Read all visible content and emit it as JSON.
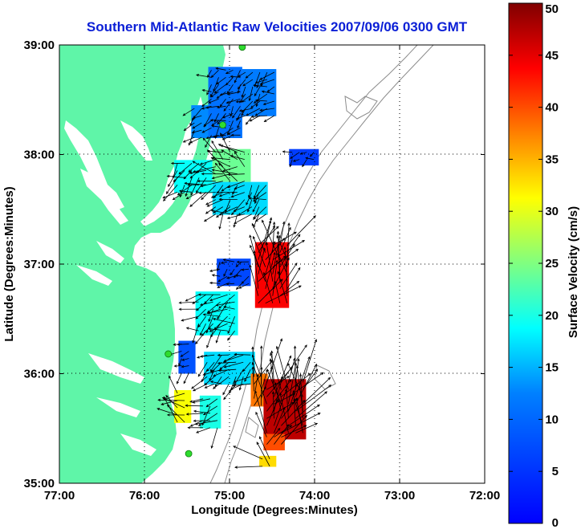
{
  "title": "Southern Mid-Atlantic Raw Velocities 2007/09/06 0300 GMT",
  "x_axis": {
    "label": "Longitude (Degrees:Minutes)",
    "ticks": [
      "77:00",
      "76:00",
      "75:00",
      "74:00",
      "73:00",
      "72:00"
    ]
  },
  "y_axis": {
    "label": "Latitude (Degrees:Minutes)",
    "ticks": [
      "39:00",
      "38:00",
      "37:00",
      "36:00",
      "35:00"
    ]
  },
  "colorbar": {
    "label": "Surface Velocity (cm/s)",
    "ticks": [
      "50",
      "45",
      "40",
      "35",
      "30",
      "25",
      "20",
      "15",
      "10",
      "5",
      "0"
    ],
    "min": 0,
    "max": 50
  },
  "colors": {
    "land": "#5ff5a8",
    "title": "#0b1fd6",
    "station": "#2fdc2f",
    "bathymetry": "#8c8c8c"
  },
  "legend": "none",
  "grid": true,
  "grid_style": "dotted",
  "chart_data": {
    "type": "heatmap",
    "title": "Southern Mid-Atlantic Raw Velocities 2007/09/06 0300 GMT",
    "xlabel": "Longitude (Degrees:Minutes)",
    "ylabel": "Latitude (Degrees:Minutes)",
    "colorbar_label": "Surface Velocity (cm/s)",
    "xlim": [
      -77.0,
      -72.0
    ],
    "ylim": [
      35.0,
      39.0
    ],
    "clim": [
      0,
      50
    ],
    "grid": true,
    "colormap": "jet",
    "stations": [
      {
        "lon": -74.85,
        "lat": 38.98
      },
      {
        "lon": -75.08,
        "lat": 38.27
      },
      {
        "lon": -75.72,
        "lat": 36.18
      },
      {
        "lon": -75.48,
        "lat": 35.27
      }
    ],
    "velocity_regions": [
      {
        "lon": [
          -75.45,
          -75.25
        ],
        "lat": [
          38.15,
          38.45
        ],
        "speed_cm_s": 13
      },
      {
        "lon": [
          -75.25,
          -74.85
        ],
        "lat": [
          38.15,
          38.8
        ],
        "speed_cm_s": 11
      },
      {
        "lon": [
          -74.85,
          -74.45
        ],
        "lat": [
          38.35,
          38.78
        ],
        "speed_cm_s": 12
      },
      {
        "lon": [
          -74.3,
          -73.95
        ],
        "lat": [
          37.9,
          38.05
        ],
        "speed_cm_s": 6
      },
      {
        "lon": [
          -75.65,
          -75.2
        ],
        "lat": [
          37.65,
          37.95
        ],
        "speed_cm_s": 19
      },
      {
        "lon": [
          -75.2,
          -74.75
        ],
        "lat": [
          37.75,
          38.05
        ],
        "speed_cm_s": 24
      },
      {
        "lon": [
          -75.2,
          -74.55
        ],
        "lat": [
          37.45,
          37.75
        ],
        "speed_cm_s": 17
      },
      {
        "lon": [
          -74.7,
          -74.3
        ],
        "lat": [
          36.6,
          37.2
        ],
        "speed_cm_s": 44
      },
      {
        "lon": [
          -75.15,
          -74.75
        ],
        "lat": [
          36.8,
          37.05
        ],
        "speed_cm_s": 7
      },
      {
        "lon": [
          -75.4,
          -74.9
        ],
        "lat": [
          36.35,
          36.75
        ],
        "speed_cm_s": 19
      },
      {
        "lon": [
          -75.6,
          -75.4
        ],
        "lat": [
          36.0,
          36.3
        ],
        "speed_cm_s": 8
      },
      {
        "lon": [
          -75.3,
          -74.7
        ],
        "lat": [
          35.9,
          36.2
        ],
        "speed_cm_s": 17
      },
      {
        "lon": [
          -75.35,
          -75.1
        ],
        "lat": [
          35.5,
          35.8
        ],
        "speed_cm_s": 20
      },
      {
        "lon": [
          -75.65,
          -75.45
        ],
        "lat": [
          35.55,
          35.85
        ],
        "speed_cm_s": 31
      },
      {
        "lon": [
          -74.75,
          -74.55
        ],
        "lat": [
          35.7,
          36.0
        ],
        "speed_cm_s": 38
      },
      {
        "lon": [
          -74.6,
          -74.1
        ],
        "lat": [
          35.4,
          35.95
        ],
        "speed_cm_s": 47
      },
      {
        "lon": [
          -74.6,
          -74.35
        ],
        "lat": [
          35.3,
          35.45
        ],
        "speed_cm_s": 40
      },
      {
        "lon": [
          -74.65,
          -74.45
        ],
        "lat": [
          35.15,
          35.25
        ],
        "speed_cm_s": 33
      }
    ]
  }
}
